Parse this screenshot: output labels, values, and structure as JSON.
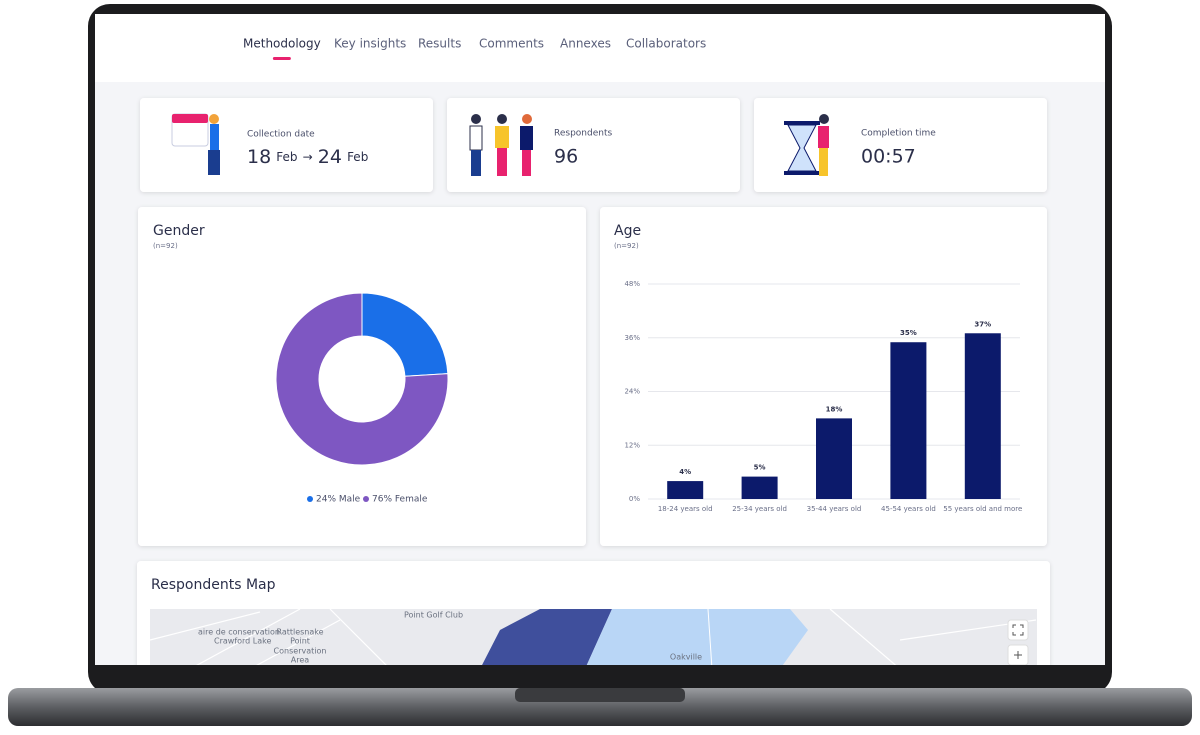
{
  "nav": {
    "items": [
      "Methodology",
      "Key insights",
      "Results",
      "Comments",
      "Annexes",
      "Collaborators"
    ],
    "active": 0
  },
  "cards": [
    {
      "label": "Collection date",
      "value": {
        "start_day": "18",
        "start_month": "Feb",
        "arrow": "→",
        "end_day": "24",
        "end_month": "Feb"
      }
    },
    {
      "label": "Respondents",
      "value": "96"
    },
    {
      "label": "Completion time",
      "value": "00:57"
    }
  ],
  "gender_chart": {
    "type": "pie",
    "title": "Gender",
    "subtitle": "(n=92)",
    "categories": [
      "Male",
      "Female"
    ],
    "values": [
      24,
      76
    ],
    "value_labels": [
      "24% Male",
      "76% Female"
    ],
    "colors": [
      "#1a6fe8",
      "#7e57c2"
    ],
    "donut": true
  },
  "age_chart": {
    "type": "bar",
    "title": "Age",
    "subtitle": "(n=92)",
    "categories": [
      "18-24 years old",
      "25-34 years old",
      "35-44 years old",
      "45-54 years old",
      "55 years old and more"
    ],
    "values": [
      4,
      5,
      18,
      35,
      37
    ],
    "value_labels": [
      "4%",
      "5%",
      "18%",
      "35%",
      "37%"
    ],
    "color": "#0c1a6b",
    "ylim": [
      0,
      48
    ],
    "yticks": [
      {
        "value": 0,
        "label": "0%"
      },
      {
        "value": 12,
        "label": "12%"
      },
      {
        "value": 24,
        "label": "24%"
      },
      {
        "value": 36,
        "label": "36%"
      },
      {
        "value": 48,
        "label": "48%"
      }
    ],
    "grid": true
  },
  "map": {
    "title": "Respondents Map",
    "labels": [
      {
        "lines": [
          "Point Golf Club"
        ]
      },
      {
        "lines": [
          "aire de conservation",
          "Crawford Lake"
        ]
      },
      {
        "lines": [
          "Rattlesnake",
          "Point",
          "Conservation",
          "Area"
        ]
      },
      {
        "lines": [
          "Oakville"
        ]
      }
    ]
  }
}
